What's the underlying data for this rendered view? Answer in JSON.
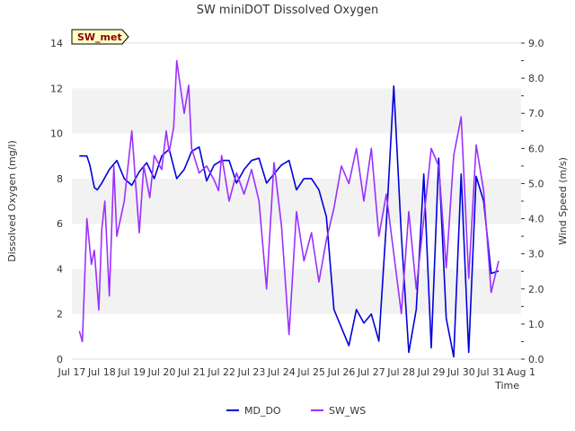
{
  "site_badge": "SW_met",
  "chart_data": {
    "type": "line",
    "title": "SW miniDOT Dissolved Oxygen",
    "xlabel": "Time",
    "ylabel_left": "Dissolved Oxygen (mg/l)",
    "ylabel_right": "Wind Speed (m/s)",
    "x_tick_labels": [
      "Jul 17",
      "Jul 18",
      "Jul 19",
      "Jul 20",
      "Jul 21",
      "Jul 22",
      "Jul 23",
      "Jul 24",
      "Jul 25",
      "Jul 26",
      "Jul 27",
      "Jul 28",
      "Jul 29",
      "Jul 30",
      "Jul 31",
      "Aug 1"
    ],
    "x_range_days": [
      17,
      32
    ],
    "y_left_range": [
      0,
      14
    ],
    "y_left_ticks": [
      "0",
      "2",
      "4",
      "6",
      "8",
      "10",
      "12",
      "14"
    ],
    "y_right_range": [
      0,
      9
    ],
    "y_right_ticks": [
      "0.0",
      "1.0",
      "2.0",
      "3.0",
      "4.0",
      "5.0",
      "6.0",
      "7.0",
      "8.0",
      "9.0"
    ],
    "grid": "horizontal alternating bands",
    "legend_position": "bottom-center",
    "series": [
      {
        "name": "MD_DO",
        "axis": "left",
        "color": "#0000dd",
        "x": [
          17.25,
          17.5,
          17.6,
          17.75,
          17.85,
          18.0,
          18.25,
          18.5,
          18.75,
          19.0,
          19.25,
          19.5,
          19.75,
          20.0,
          20.25,
          20.5,
          20.75,
          21.0,
          21.25,
          21.5,
          21.75,
          22.0,
          22.25,
          22.5,
          22.75,
          23.0,
          23.25,
          23.5,
          23.75,
          24.0,
          24.25,
          24.5,
          24.75,
          25.0,
          25.25,
          25.5,
          25.75,
          26.0,
          26.25,
          26.5,
          26.75,
          27.0,
          27.25,
          27.5,
          27.75,
          28.0,
          28.25,
          28.5,
          28.75,
          29.0,
          29.25,
          29.5,
          29.75,
          30.0,
          30.25,
          30.5,
          30.75,
          31.0,
          31.25
        ],
        "y": [
          9.0,
          9.0,
          8.6,
          7.6,
          7.5,
          7.8,
          8.4,
          8.8,
          8.0,
          7.7,
          8.3,
          8.7,
          8.0,
          9.0,
          9.3,
          8.0,
          8.4,
          9.2,
          9.4,
          7.9,
          8.6,
          8.8,
          8.8,
          7.8,
          8.4,
          8.8,
          8.9,
          7.8,
          8.2,
          8.6,
          8.8,
          7.5,
          8.0,
          8.0,
          7.5,
          6.3,
          2.2,
          1.4,
          0.6,
          2.2,
          1.6,
          2.0,
          0.8,
          6.0,
          12.1,
          5.5,
          0.3,
          2.2,
          8.2,
          0.5,
          8.9,
          1.8,
          0.1,
          8.2,
          0.3,
          8.1,
          7.0,
          3.8,
          3.9
        ]
      },
      {
        "name": "SW_WS",
        "axis": "right",
        "color": "#9b30ff",
        "x": [
          17.25,
          17.35,
          17.5,
          17.65,
          17.75,
          17.9,
          18.0,
          18.1,
          18.25,
          18.4,
          18.5,
          18.75,
          19.0,
          19.25,
          19.4,
          19.6,
          19.75,
          20.0,
          20.15,
          20.25,
          20.4,
          20.5,
          20.75,
          20.9,
          21.0,
          21.25,
          21.5,
          21.75,
          21.9,
          22.0,
          22.25,
          22.5,
          22.75,
          23.0,
          23.25,
          23.5,
          23.75,
          24.0,
          24.25,
          24.5,
          24.75,
          25.0,
          25.25,
          25.5,
          25.75,
          26.0,
          26.25,
          26.5,
          26.75,
          27.0,
          27.25,
          27.5,
          27.75,
          28.0,
          28.25,
          28.5,
          28.75,
          29.0,
          29.25,
          29.5,
          29.75,
          30.0,
          30.25,
          30.5,
          30.75,
          31.0,
          31.25
        ],
        "y": [
          0.8,
          0.5,
          4.0,
          2.7,
          3.1,
          1.4,
          3.7,
          4.5,
          1.8,
          5.5,
          3.5,
          4.5,
          6.5,
          3.6,
          5.5,
          4.6,
          5.8,
          5.4,
          6.5,
          5.9,
          6.6,
          8.5,
          7.0,
          7.8,
          6.0,
          5.3,
          5.5,
          5.1,
          4.8,
          5.8,
          4.5,
          5.3,
          4.7,
          5.4,
          4.5,
          2.0,
          5.6,
          3.8,
          0.7,
          4.2,
          2.8,
          3.6,
          2.2,
          3.4,
          4.3,
          5.5,
          5.0,
          6.0,
          4.5,
          6.0,
          3.5,
          4.7,
          3.0,
          1.3,
          4.2,
          2.0,
          4.0,
          6.0,
          5.5,
          2.6,
          5.8,
          6.9,
          2.3,
          6.1,
          4.8,
          1.9,
          2.8
        ]
      }
    ]
  }
}
